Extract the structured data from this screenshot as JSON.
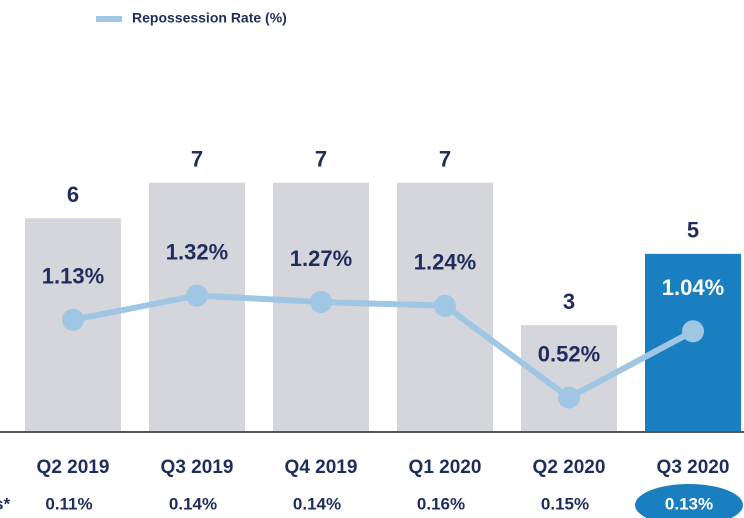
{
  "chart_data": {
    "type": "bar",
    "categories": [
      "Q2 2019",
      "Q3 2019",
      "Q4 2019",
      "Q1 2020",
      "Q2 2020",
      "Q3 2020"
    ],
    "values": [
      6,
      7,
      7,
      7,
      3,
      5
    ],
    "colors": [
      "#d4d6db",
      "#d4d6db",
      "#d4d6db",
      "#d4d6db",
      "#d4d6db",
      "#1a7fc1"
    ],
    "ylim": [
      0,
      8
    ],
    "y2lim": [
      0,
      2.5
    ],
    "series": [
      {
        "name": "Repossession Rate (%)",
        "color": "#9fc6e3",
        "axis": "y2",
        "type": "line",
        "values": [
          1.13,
          1.32,
          1.27,
          1.24,
          0.52,
          1.04
        ],
        "value_labels": [
          "1.13%",
          "1.32%",
          "1.27%",
          "1.24%",
          "0.52%",
          "1.04%"
        ]
      }
    ],
    "bottom_row": {
      "label": "s*",
      "values": [
        0.11,
        0.14,
        0.14,
        0.16,
        0.15,
        0.13
      ],
      "value_labels": [
        "0.11%",
        "0.14%",
        "0.14%",
        "0.16%",
        "0.15%",
        "0.13%"
      ]
    },
    "legend": "top-left"
  }
}
